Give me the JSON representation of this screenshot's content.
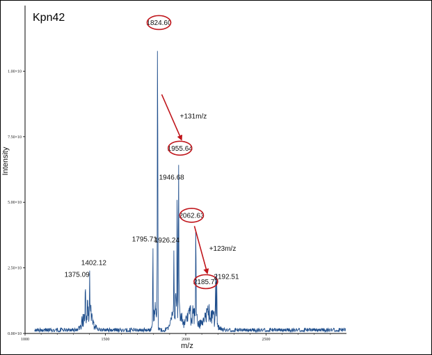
{
  "chart_data": {
    "type": "line",
    "title": "Kpn42",
    "xlabel": "m/z",
    "ylabel": "Intensity",
    "xlim": [
      1000,
      3000
    ],
    "ylim": [
      0,
      1.25
    ],
    "xticks": [
      {
        "value": 1000,
        "label": "1000"
      },
      {
        "value": 1500,
        "label": "1500"
      },
      {
        "value": 2000,
        "label": "2000"
      },
      {
        "value": 2500,
        "label": "2500"
      }
    ],
    "yticks": [
      {
        "value": 0,
        "label": "0.00×10"
      },
      {
        "value": 0.25,
        "label": "2.50×10"
      },
      {
        "value": 0.5,
        "label": "5.00×10"
      },
      {
        "value": 0.75,
        "label": "7.50×10"
      },
      {
        "value": 1.0,
        "label": "1.00×10"
      }
    ],
    "line_color": "#1f4e8c",
    "highlight_color": "#c0151b",
    "peaks": [
      {
        "x": 1375.09,
        "y": 0.2,
        "label": "1375.09",
        "circled": false
      },
      {
        "x": 1402.12,
        "y": 0.24,
        "label": "1402.12",
        "circled": false
      },
      {
        "x": 1795.71,
        "y": 0.33,
        "label": "1795.71",
        "circled": false
      },
      {
        "x": 1824.6,
        "y": 1.16,
        "label": "1824.60",
        "circled": true
      },
      {
        "x": 1926.24,
        "y": 0.32,
        "label": "1926.24",
        "circled": false
      },
      {
        "x": 1946.68,
        "y": 0.56,
        "label": "1946.68",
        "circled": false
      },
      {
        "x": 1955.64,
        "y": 0.66,
        "label": "1955.64",
        "circled": true
      },
      {
        "x": 2062.63,
        "y": 0.42,
        "label": "2062.63",
        "circled": true
      },
      {
        "x": 2185.77,
        "y": 0.22,
        "label": "2185.77",
        "circled": true
      },
      {
        "x": 2192.51,
        "y": 0.24,
        "label": "2192.51",
        "circled": false
      }
    ],
    "annotations": [
      {
        "text": "+131m/z",
        "from": 1824.6,
        "to": 1955.64
      },
      {
        "text": "+123m/z",
        "from": 2062.63,
        "to": 2185.77
      }
    ]
  }
}
